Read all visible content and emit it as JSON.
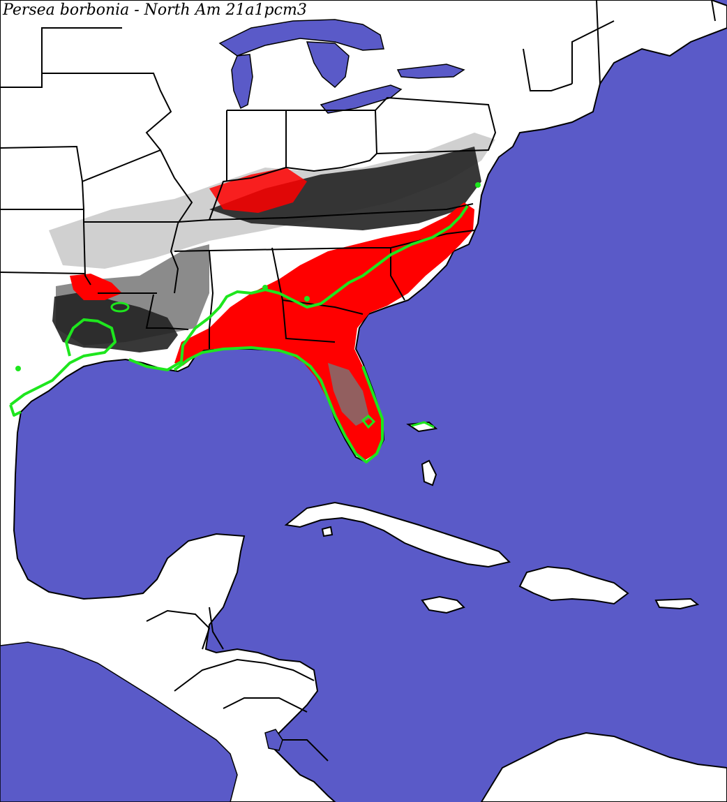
{
  "map": {
    "title": "Persea borbonia - North Am 21a1pcm3",
    "colors": {
      "water": "#5a5ac8",
      "land": "#ffffff",
      "borders": "#000000",
      "predicted_suitable": "#ff0000",
      "dark_suitability": "#222222",
      "medium_suitability": "#777777",
      "light_suitability": "#c8c8c8",
      "range_outline": "#1ee61e"
    }
  }
}
